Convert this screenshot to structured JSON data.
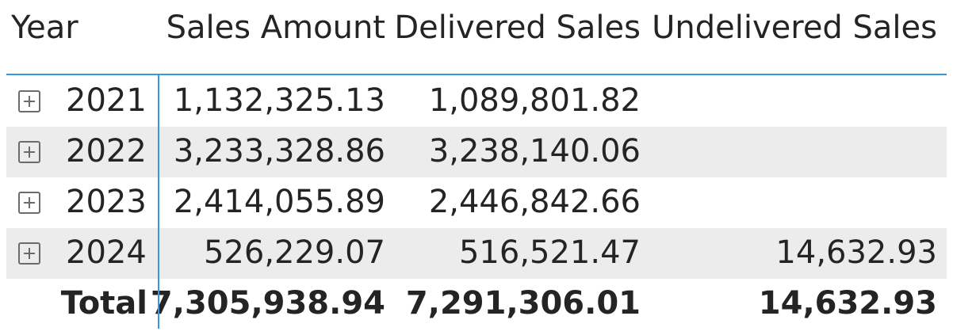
{
  "matrix": {
    "headers": {
      "year": "Year",
      "sales_amount": "Sales Amount",
      "delivered_sales": "Delivered Sales",
      "undelivered_sales": "Undelivered Sales"
    },
    "rows": [
      {
        "year": "2021",
        "sales_amount": "1,132,325.13",
        "delivered_sales": "1,089,801.82",
        "undelivered_sales": ""
      },
      {
        "year": "2022",
        "sales_amount": "3,233,328.86",
        "delivered_sales": "3,238,140.06",
        "undelivered_sales": ""
      },
      {
        "year": "2023",
        "sales_amount": "2,414,055.89",
        "delivered_sales": "2,446,842.66",
        "undelivered_sales": ""
      },
      {
        "year": "2024",
        "sales_amount": "526,229.07",
        "delivered_sales": "516,521.47",
        "undelivered_sales": "14,632.93"
      }
    ],
    "total": {
      "label": "Total",
      "sales_amount": "7,305,938.94",
      "delivered_sales": "7,291,306.01",
      "undelivered_sales": "14,632.93"
    },
    "icons": {
      "expand": "plus-box-icon"
    },
    "colors": {
      "accent_line": "#3a96dd",
      "shaded_row": "#ececec",
      "text": "#252423"
    }
  }
}
